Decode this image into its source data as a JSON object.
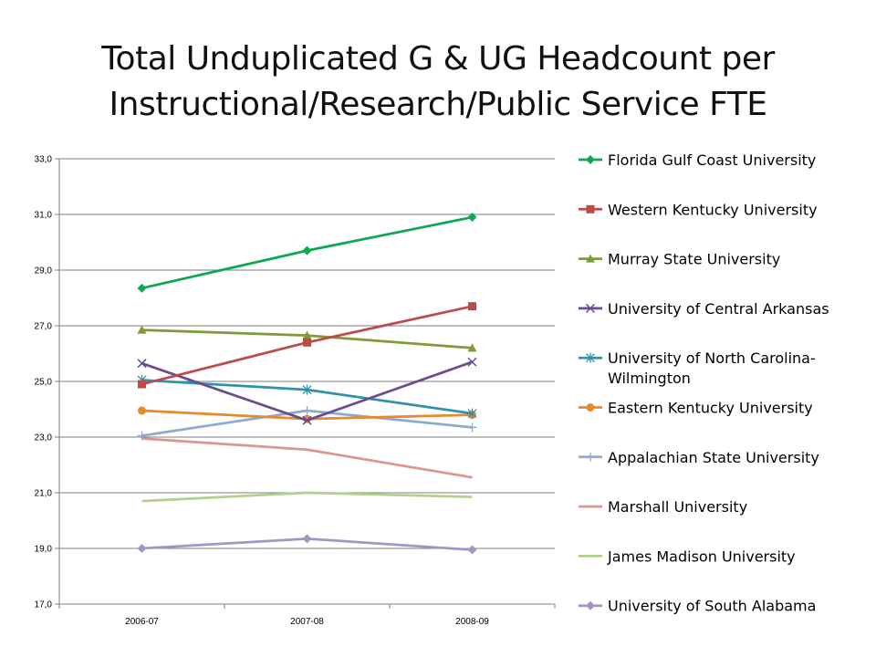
{
  "slide": {
    "title_line1": "Total Unduplicated G & UG Headcount per",
    "title_line2": "Instructional/Research/Public Service FTE"
  },
  "chart_data": {
    "type": "line",
    "title": "Total Unduplicated G & UG Headcount per Instructional/Research/Public Service FTE",
    "categories": [
      "2006-07",
      "2007-08",
      "2008-09"
    ],
    "ylim": [
      17.0,
      33.0
    ],
    "yticks": [
      "17,0",
      "19,0",
      "21,0",
      "23,0",
      "25,0",
      "27,0",
      "29,0",
      "31,0",
      "33,0"
    ],
    "grid": "horizontal",
    "legend_position": "right",
    "series": [
      {
        "name": "Florida Gulf Coast University",
        "values": [
          28.35,
          29.7,
          30.9
        ],
        "color": "#10a84f",
        "marker": "diamond"
      },
      {
        "name": "Western Kentucky University",
        "values": [
          24.9,
          26.4,
          27.7
        ],
        "color": "#be4b48",
        "marker": "square"
      },
      {
        "name": "Murray State University",
        "values": [
          26.85,
          26.65,
          26.2
        ],
        "color": "#7f9c3c",
        "marker": "triangle"
      },
      {
        "name": "University of Central Arkansas",
        "values": [
          25.65,
          23.6,
          25.7
        ],
        "color": "#6b4c8c",
        "marker": "x"
      },
      {
        "name": "University of North Carolina-Wilmington",
        "name_lines": [
          "University of North Carolina-",
          "Wilmington"
        ],
        "values": [
          25.05,
          24.7,
          23.85
        ],
        "color": "#2e93ab",
        "marker": "asterisk"
      },
      {
        "name": "Eastern Kentucky University",
        "values": [
          23.95,
          23.65,
          23.8
        ],
        "color": "#e68a2e",
        "marker": "circle"
      },
      {
        "name": "Appalachian State University",
        "values": [
          23.05,
          23.95,
          23.35
        ],
        "color": "#8eaacf",
        "marker": "plus"
      },
      {
        "name": "Marshall University",
        "values": [
          22.95,
          22.55,
          21.55
        ],
        "color": "#d99694",
        "marker": "none"
      },
      {
        "name": "James Madison University",
        "values": [
          20.7,
          21.0,
          20.85
        ],
        "color": "#b3d08f",
        "marker": "none"
      },
      {
        "name": "University of South Alabama",
        "values": [
          19.0,
          19.35,
          18.95
        ],
        "color": "#a694c4",
        "marker": "diamond"
      }
    ]
  }
}
